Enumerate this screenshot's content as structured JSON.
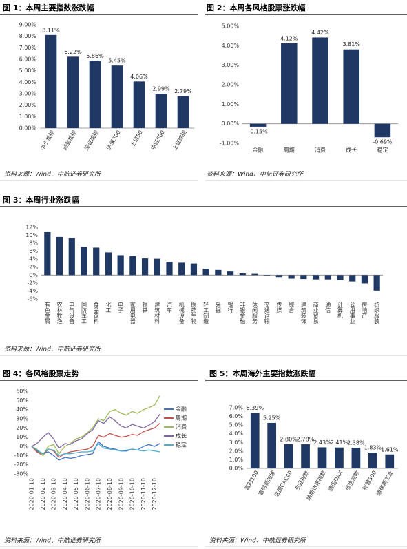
{
  "chart_data": [
    {
      "type": "bar",
      "title": "图 1：本周主要指数涨跌幅",
      "source": "资料来源：Wind、中航证券研究所",
      "categories": [
        "中小板指",
        "创业板指",
        "深证成指",
        "沪深300",
        "上证50",
        "中证500",
        "上证综指"
      ],
      "values": [
        8.11,
        6.22,
        5.86,
        5.45,
        4.06,
        2.99,
        2.79
      ],
      "value_labels": [
        "8.11%",
        "6.22%",
        "5.86%",
        "5.45%",
        "4.06%",
        "2.99%",
        "2.79%"
      ],
      "color": "#1f3864",
      "ylim": [
        0,
        9
      ],
      "yticks": [
        {
          "value": 0,
          "label": "0.00%"
        },
        {
          "value": 1,
          "label": "1.00%"
        },
        {
          "value": 2,
          "label": "2.00%"
        },
        {
          "value": 3,
          "label": "3.00%"
        },
        {
          "value": 4,
          "label": "4.00%"
        },
        {
          "value": 5,
          "label": "5.00%"
        },
        {
          "value": 6,
          "label": "6.00%"
        },
        {
          "value": 7,
          "label": "7.00%"
        },
        {
          "value": 8,
          "label": "8.00%"
        },
        {
          "value": 9,
          "label": "9.00%"
        }
      ]
    },
    {
      "type": "bar",
      "title": "图 2：本周各风格股票涨跌幅",
      "source": "资料来源：Wind、中航证券研究所",
      "categories": [
        "金融",
        "周期",
        "消费",
        "成长",
        "稳定"
      ],
      "values": [
        -0.15,
        4.12,
        4.42,
        3.81,
        -0.69
      ],
      "value_labels": [
        "-0.15%",
        "4.12%",
        "4.42%",
        "3.81%",
        "-0.69%"
      ],
      "color": "#1f3864",
      "ylim": [
        -1,
        5
      ],
      "yticks": [
        {
          "value": -1,
          "label": "-1.00%"
        },
        {
          "value": 0,
          "label": "0.00%"
        },
        {
          "value": 1,
          "label": "1.00%"
        },
        {
          "value": 2,
          "label": "2.00%"
        },
        {
          "value": 3,
          "label": "3.00%"
        },
        {
          "value": 4,
          "label": "4.00%"
        },
        {
          "value": 5,
          "label": "5.00%"
        }
      ]
    },
    {
      "type": "bar",
      "title": "图 3：本周行业涨跌幅",
      "source": "资料来源：Wind、中航证券研究所",
      "categories": [
        "有色金属",
        "农林牧渔",
        "电气设备",
        "国防军工",
        "食品饮料",
        "化工",
        "电子",
        "家用电器",
        "钢铁",
        "建筑材料",
        "汽车",
        "机械设备",
        "医药生物",
        "轻工制造",
        "采掘",
        "银行",
        "非银金融",
        "休闲服务",
        "交通运输",
        "传媒",
        "综合",
        "建筑装饰",
        "商业贸易",
        "通信",
        "计算机",
        "公用事业",
        "房地产",
        "纺织服装"
      ],
      "values": [
        10.8,
        9.6,
        9.3,
        7.1,
        6.9,
        5.7,
        5.0,
        4.8,
        4.2,
        4.1,
        3.3,
        3.1,
        2.9,
        1.6,
        1.3,
        0.9,
        0.4,
        0.3,
        -0.1,
        -0.5,
        -0.9,
        -1.0,
        -1.1,
        -1.1,
        -1.3,
        -1.6,
        -2.1,
        -3.9
      ],
      "color": "#1f3864",
      "ylim": [
        -6,
        12
      ],
      "yticks": [
        {
          "value": -6,
          "label": "-6%"
        },
        {
          "value": -4,
          "label": "-4%"
        },
        {
          "value": -2,
          "label": "-2%"
        },
        {
          "value": 0,
          "label": "0%"
        },
        {
          "value": 2,
          "label": "2%"
        },
        {
          "value": 4,
          "label": "4%"
        },
        {
          "value": 6,
          "label": "6%"
        },
        {
          "value": 8,
          "label": "8%"
        },
        {
          "value": 10,
          "label": "10%"
        },
        {
          "value": 12,
          "label": "12%"
        }
      ]
    },
    {
      "type": "line",
      "title": "图 4：各风格股票走势",
      "source": "资料来源：Wind、中航证券研究所",
      "x": [
        "2020-01-10",
        "2020-01-24",
        "2020-02-10",
        "2020-02-24",
        "2020-03-10",
        "2020-03-24",
        "2020-04-10",
        "2020-04-24",
        "2020-05-10",
        "2020-05-24",
        "2020-06-10",
        "2020-06-24",
        "2020-07-10",
        "2020-07-24",
        "2020-08-10",
        "2020-08-24",
        "2020-09-10",
        "2020-09-24",
        "2020-10-10",
        "2020-10-24",
        "2020-11-10",
        "2020-11-24",
        "2020-12-10",
        "2020-12-24"
      ],
      "series": [
        {
          "name": "金融",
          "color": "#4472c4",
          "values": [
            0,
            -5,
            -8,
            -6,
            -10,
            -15,
            -12,
            -13,
            -12,
            -10,
            -9,
            -8,
            5,
            0,
            -2,
            -3,
            -5,
            -5,
            -3,
            -4,
            0,
            2,
            0,
            3
          ]
        },
        {
          "name": "周期",
          "color": "#c0504d",
          "values": [
            0,
            -6,
            -10,
            -3,
            -5,
            -12,
            -8,
            -6,
            -5,
            -4,
            -3,
            0,
            12,
            10,
            14,
            12,
            10,
            11,
            13,
            12,
            16,
            18,
            20,
            25
          ]
        },
        {
          "name": "消费",
          "color": "#9bbb59",
          "values": [
            0,
            -3,
            -10,
            0,
            2,
            -8,
            0,
            3,
            8,
            10,
            15,
            20,
            30,
            28,
            38,
            40,
            36,
            34,
            38,
            36,
            40,
            42,
            45,
            55
          ]
        },
        {
          "name": "成长",
          "color": "#8064a2",
          "values": [
            0,
            3,
            10,
            15,
            8,
            -2,
            3,
            2,
            6,
            8,
            14,
            18,
            28,
            25,
            32,
            28,
            22,
            20,
            24,
            22,
            20,
            23,
            27,
            35
          ]
        },
        {
          "name": "稳定",
          "color": "#4bacc6",
          "values": [
            0,
            -4,
            -8,
            -3,
            -4,
            -10,
            -8,
            -8,
            -7,
            -6,
            -6,
            -5,
            3,
            -2,
            -3,
            -4,
            -5,
            -4,
            -3,
            -4,
            -5,
            -4,
            -5,
            -6
          ]
        }
      ],
      "xticks": [
        "2020-01-10",
        "2020-02-10",
        "2020-03-10",
        "2020-04-10",
        "2020-05-10",
        "2020-06-10",
        "2020-07-10",
        "2020-08-10",
        "2020-09-10",
        "2020-10-10",
        "2020-11-10",
        "2020-12-10"
      ],
      "ylim": [
        -30,
        60
      ],
      "yticks": [
        {
          "value": -30,
          "label": "-30%"
        },
        {
          "value": -20,
          "label": "-20%"
        },
        {
          "value": -10,
          "label": "-10%"
        },
        {
          "value": 0,
          "label": "0%"
        },
        {
          "value": 10,
          "label": "10%"
        },
        {
          "value": 20,
          "label": "20%"
        },
        {
          "value": 30,
          "label": "30%"
        },
        {
          "value": 40,
          "label": "40%"
        },
        {
          "value": 50,
          "label": "50%"
        },
        {
          "value": 60,
          "label": "60%"
        }
      ],
      "legend": "right"
    },
    {
      "type": "bar",
      "title": "图 5：本周海外主要指数涨跌幅",
      "source": "资料来源：Wind、中航证券研究所",
      "categories": [
        "富时100",
        "富时新加坡",
        "法国CAC40",
        "东证指数",
        "纳斯达克指数",
        "德国DAX",
        "恒生指数",
        "标普500",
        "道琼斯工业"
      ],
      "values": [
        6.39,
        5.25,
        2.8,
        2.78,
        2.43,
        2.41,
        2.38,
        1.83,
        1.61
      ],
      "value_labels": [
        "6.39%",
        "5.25%",
        "2.80%",
        "2.78%",
        "2.43%",
        "2.41%",
        "2.38%",
        "1.83%",
        "1.61%"
      ],
      "color": "#1f3864",
      "ylim": [
        0,
        7
      ],
      "yticks": [
        {
          "value": 0,
          "label": "0.0%"
        },
        {
          "value": 1,
          "label": "1.0%"
        },
        {
          "value": 2,
          "label": "2.0%"
        },
        {
          "value": 3,
          "label": "3.0%"
        },
        {
          "value": 4,
          "label": "4.0%"
        },
        {
          "value": 5,
          "label": "5.0%"
        },
        {
          "value": 6,
          "label": "6.0%"
        },
        {
          "value": 7,
          "label": "7.0%"
        }
      ]
    }
  ]
}
